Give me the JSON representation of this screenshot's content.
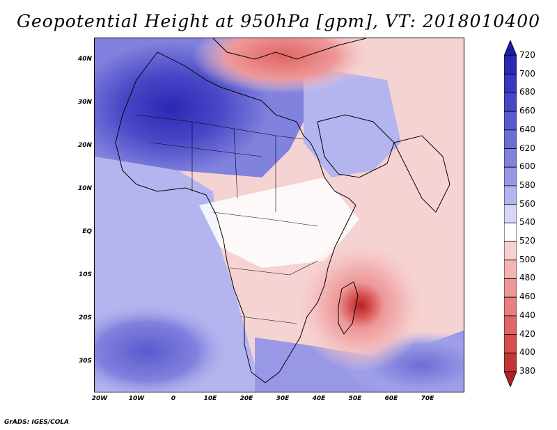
{
  "title": "Geopotential Height at 950hPa [gpm], VT: 2018010400",
  "credit": "GrADS: IGES/COLA",
  "map": {
    "field": "Geopotential Height",
    "level": "950hPa",
    "units": "gpm",
    "valid_time": "2018010400",
    "lat_labels": [
      "40N",
      "30N",
      "20N",
      "10N",
      "EQ",
      "10S",
      "20S",
      "30S"
    ],
    "lon_labels": [
      "20W",
      "10W",
      "0",
      "10E",
      "20E",
      "30E",
      "40E",
      "50E",
      "60E",
      "70E"
    ],
    "features": [
      {
        "name": "subtropical-high-north-africa",
        "level": "high"
      },
      {
        "name": "mediterranean-low",
        "level": "low"
      },
      {
        "name": "madagascar-cyclone-low",
        "level": "lowest"
      },
      {
        "name": "south-atlantic-high",
        "level": "high"
      },
      {
        "name": "south-indian-ocean-high",
        "level": "high"
      }
    ]
  },
  "colorbar": {
    "labels": [
      "720",
      "700",
      "680",
      "660",
      "640",
      "620",
      "600",
      "580",
      "560",
      "540",
      "520",
      "500",
      "480",
      "460",
      "440",
      "420",
      "400",
      "380"
    ],
    "colors": [
      "#1f1aa8",
      "#2b28b3",
      "#3937bd",
      "#4847c6",
      "#5a5ace",
      "#6d6dd6",
      "#8181de",
      "#9898e6",
      "#b4b4ef",
      "#d6d6f8",
      "#ffffff",
      "#f8d0d0",
      "#f3b4b4",
      "#ee9898",
      "#e87e7e",
      "#e06565",
      "#d54d4d",
      "#c43535",
      "#b22222"
    ]
  }
}
